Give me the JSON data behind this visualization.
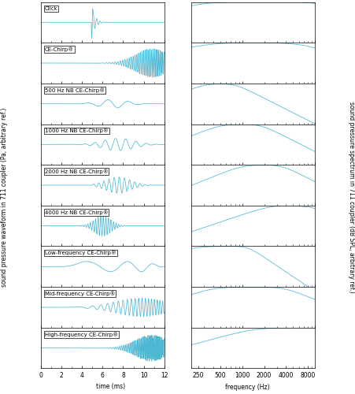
{
  "row_labels": [
    "Click",
    "CE-Chirp®",
    "500 Hz NB CE-Chirp®",
    "1000 Hz NB CE-Chirp®",
    "2000 Hz NB CE-Chirp®",
    "4000 Hz NB CE-Chirp®",
    "Low-frequency CE-Chirp®",
    "Mid-frequency CE-Chirp®",
    "High-frequency CE-Chirp®"
  ],
  "line_color": "#4db8d4",
  "time_xlim": [
    0,
    12
  ],
  "freq_xlim_log": [
    200,
    10000
  ],
  "time_ticks": [
    0,
    2,
    4,
    6,
    8,
    10,
    12
  ],
  "freq_ticks": [
    250,
    500,
    1000,
    2000,
    4000,
    8000
  ],
  "xlabel_time": "time (ms)",
  "xlabel_freq": "frequency (Hz)",
  "ylabel_left": "sound pressure waveform in 711 coupler (Pa, arbitrary ref.)",
  "ylabel_right": "sound pressure spectrum in 711 coupler (dB SPL, arbitrary ref.)",
  "label_fontsize": 5.5,
  "tick_fontsize": 5.5,
  "figure_width": 4.52,
  "figure_height": 5.0,
  "dpi": 100
}
